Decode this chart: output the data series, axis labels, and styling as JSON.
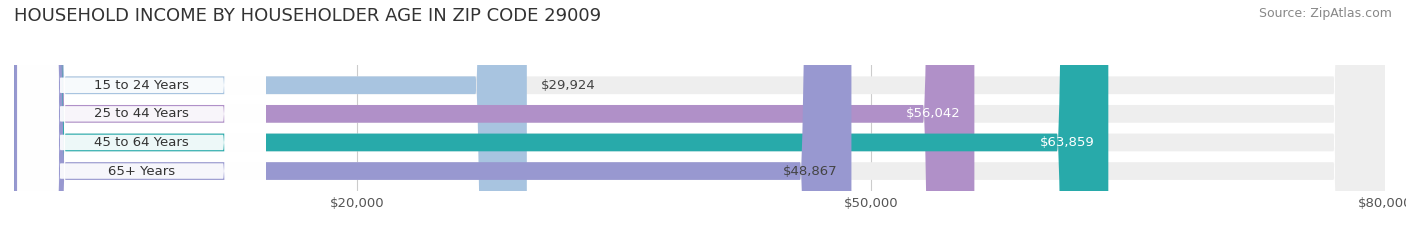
{
  "title": "HOUSEHOLD INCOME BY HOUSEHOLDER AGE IN ZIP CODE 29009",
  "source": "Source: ZipAtlas.com",
  "categories": [
    "15 to 24 Years",
    "25 to 44 Years",
    "45 to 64 Years",
    "65+ Years"
  ],
  "values": [
    29924,
    56042,
    63859,
    48867
  ],
  "bar_colors": [
    "#a8c4e0",
    "#b090c8",
    "#28aaaa",
    "#9898d0"
  ],
  "bar_label_colors": [
    "#444444",
    "#ffffff",
    "#ffffff",
    "#444444"
  ],
  "xlim": [
    0,
    80000
  ],
  "xticks": [
    20000,
    50000,
    80000
  ],
  "xtick_labels": [
    "$20,000",
    "$50,000",
    "$80,000"
  ],
  "background_color": "#ffffff",
  "bar_background_color": "#eeeeee",
  "title_fontsize": 13,
  "source_fontsize": 9,
  "label_fontsize": 9.5,
  "tick_fontsize": 9.5,
  "bar_height": 0.62,
  "fig_width": 14.06,
  "fig_height": 2.33
}
